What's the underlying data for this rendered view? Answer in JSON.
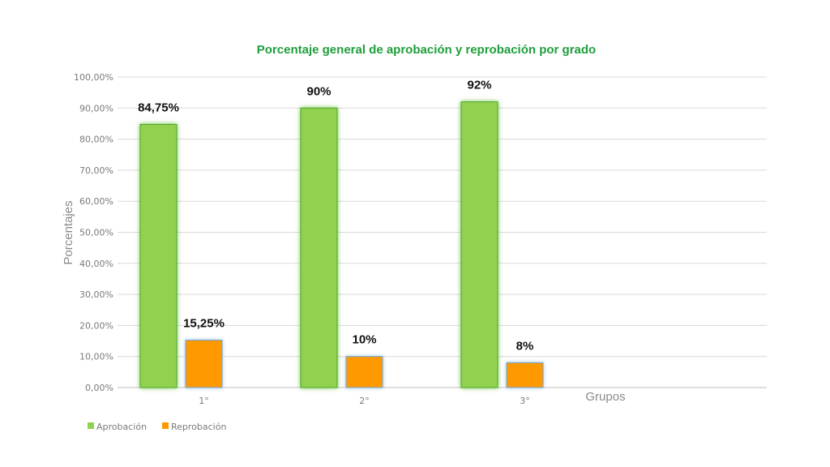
{
  "chart_data": {
    "type": "bar",
    "title": "Porcentaje general de aprobación y reprobación por grado",
    "xlabel": "Grupos",
    "ylabel": "Porcentajes",
    "categories": [
      "1°",
      "2°",
      "3°"
    ],
    "y_ticks": [
      "0,00%",
      "10,00%",
      "20,00%",
      "30,00%",
      "40,00%",
      "50,00%",
      "60,00%",
      "70,00%",
      "80,00%",
      "90,00%",
      "100,00%"
    ],
    "ylim": [
      0,
      100
    ],
    "grid": true,
    "legend_position": "bottom-left",
    "series": [
      {
        "name": "Aprobación",
        "color": "#92d050",
        "values": [
          84.75,
          90,
          92
        ],
        "labels": [
          "84,75%",
          "90%",
          "92%"
        ]
      },
      {
        "name": "Reprobación",
        "color": "#ff9900",
        "values": [
          15.25,
          10,
          8
        ],
        "labels": [
          "15,25%",
          "10%",
          "8%"
        ]
      }
    ]
  }
}
